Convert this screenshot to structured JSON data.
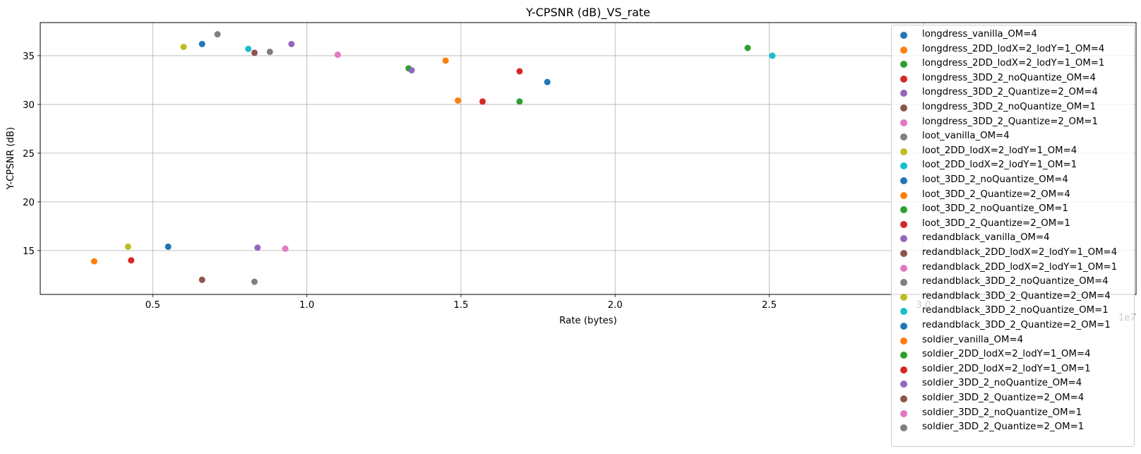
{
  "chart_data": {
    "type": "scatter",
    "title": "Y-CPSNR (dB)_VS_rate",
    "xlabel": "Rate (bytes)",
    "ylabel": "Y-CPSNR (dB)",
    "x_offset_label": "1e7",
    "x_scale": 10000000,
    "xlim": [
      0.135,
      3.69
    ],
    "ylim": [
      10.5,
      38.4
    ],
    "xticks": [
      0.5,
      1.0,
      1.5,
      2.0,
      2.5,
      3.0
    ],
    "xtick_labels": [
      "0.5",
      "1.0",
      "1.5",
      "2.0",
      "2.5",
      "3.0"
    ],
    "yticks": [
      15,
      20,
      25,
      30,
      35
    ],
    "ytick_labels": [
      "15",
      "20",
      "25",
      "30",
      "35"
    ],
    "grid": true,
    "legend_position": "right",
    "series": [
      {
        "name": "longdress_vanilla_OM=4",
        "color": "#1f77b4",
        "points": [
          [
            1.78,
            32.3
          ]
        ]
      },
      {
        "name": "longdress_2DD_lodX=2_lodY=1_OM=4",
        "color": "#ff7f0e",
        "points": [
          [
            1.45,
            34.5
          ]
        ]
      },
      {
        "name": "longdress_2DD_lodX=2_lodY=1_OM=1",
        "color": "#2ca02c",
        "points": [
          [
            1.33,
            33.7
          ]
        ]
      },
      {
        "name": "longdress_3DD_2_noQuantize_OM=4",
        "color": "#d62728",
        "points": [
          [
            1.69,
            33.4
          ]
        ]
      },
      {
        "name": "longdress_3DD_2_Quantize=2_OM=4",
        "color": "#9467bd",
        "points": [
          [
            1.34,
            33.5
          ]
        ]
      },
      {
        "name": "longdress_3DD_2_noQuantize_OM=1",
        "color": "#8c564b",
        "points": []
      },
      {
        "name": "longdress_3DD_2_Quantize=2_OM=1",
        "color": "#e377c2",
        "points": []
      },
      {
        "name": "loot_vanilla_OM=4",
        "color": "#7f7f7f",
        "points": [
          [
            0.71,
            37.2
          ]
        ]
      },
      {
        "name": "loot_2DD_lodX=2_lodY=1_OM=4",
        "color": "#bcbd22",
        "points": [
          [
            0.6,
            35.9
          ]
        ]
      },
      {
        "name": "loot_2DD_lodX=2_lodY=1_OM=1",
        "color": "#17becf",
        "points": [
          [
            0.81,
            35.7
          ]
        ]
      },
      {
        "name": "loot_3DD_2_noQuantize_OM=4",
        "color": "#1f77b4",
        "points": [
          [
            0.66,
            36.2
          ]
        ]
      },
      {
        "name": "loot_3DD_2_Quantize=2_OM=4",
        "color": "#ff7f0e",
        "points": [
          [
            1.49,
            30.4
          ]
        ]
      },
      {
        "name": "loot_3DD_2_noQuantize_OM=1",
        "color": "#2ca02c",
        "points": [
          [
            1.69,
            30.3
          ],
          [
            2.43,
            35.8
          ]
        ]
      },
      {
        "name": "loot_3DD_2_Quantize=2_OM=1",
        "color": "#d62728",
        "points": [
          [
            1.57,
            30.3
          ]
        ]
      },
      {
        "name": "redandblack_vanilla_OM=4",
        "color": "#9467bd",
        "points": [
          [
            0.95,
            36.2
          ]
        ]
      },
      {
        "name": "redandblack_2DD_lodX=2_lodY=1_OM=4",
        "color": "#8c564b",
        "points": [
          [
            0.83,
            35.3
          ]
        ]
      },
      {
        "name": "redandblack_2DD_lodX=2_lodY=1_OM=1",
        "color": "#e377c2",
        "points": [
          [
            1.1,
            35.1
          ]
        ]
      },
      {
        "name": "redandblack_3DD_2_noQuantize_OM=4",
        "color": "#7f7f7f",
        "points": [
          [
            0.88,
            35.4
          ]
        ]
      },
      {
        "name": "redandblack_3DD_2_Quantize=2_OM=4",
        "color": "#bcbd22",
        "points": [
          [
            0.42,
            15.4
          ]
        ]
      },
      {
        "name": "redandblack_3DD_2_noQuantize_OM=1",
        "color": "#17becf",
        "points": [
          [
            2.51,
            35.0
          ]
        ]
      },
      {
        "name": "redandblack_3DD_2_Quantize=2_OM=1",
        "color": "#1f77b4",
        "points": [
          [
            0.55,
            15.4
          ]
        ]
      },
      {
        "name": "soldier_vanilla_OM=4",
        "color": "#ff7f0e",
        "points": [
          [
            0.31,
            13.9
          ]
        ]
      },
      {
        "name": "soldier_2DD_lodX=2_lodY=1_OM=4",
        "color": "#2ca02c",
        "points": []
      },
      {
        "name": "soldier_2DD_lodX=2_lodY=1_OM=1",
        "color": "#d62728",
        "points": [
          [
            0.43,
            14.0
          ]
        ]
      },
      {
        "name": "soldier_3DD_2_noQuantize_OM=4",
        "color": "#9467bd",
        "points": [
          [
            0.84,
            15.3
          ]
        ]
      },
      {
        "name": "soldier_3DD_2_Quantize=2_OM=4",
        "color": "#8c564b",
        "points": [
          [
            0.66,
            12.0
          ]
        ]
      },
      {
        "name": "soldier_3DD_2_noQuantize_OM=1",
        "color": "#e377c2",
        "points": [
          [
            0.93,
            15.2
          ]
        ]
      },
      {
        "name": "soldier_3DD_2_Quantize=2_OM=1",
        "color": "#7f7f7f",
        "points": [
          [
            0.83,
            11.8
          ]
        ]
      }
    ]
  }
}
